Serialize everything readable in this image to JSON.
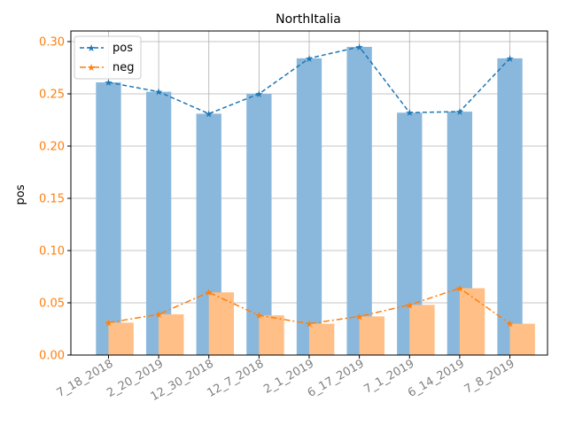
{
  "chart_data": {
    "type": "bar",
    "title": "NorthItalia",
    "xlabel": "",
    "ylabel": "pos",
    "ylim": [
      0,
      0.3
    ],
    "yticks": [
      "0.00",
      "0.05",
      "0.10",
      "0.15",
      "0.20",
      "0.25",
      "0.30"
    ],
    "categories": [
      "7_18_2018",
      "2_20_2019",
      "12_30_2018",
      "12_7_2018",
      "2_1_2019",
      "6_17_2019",
      "7_1_2019",
      "6_14_2019",
      "7_8_2019"
    ],
    "grid": true,
    "legend_position": "upper-left",
    "series": [
      {
        "name": "pos",
        "color": "#1f77b4",
        "bar_color": "#8ab8dc",
        "line_style": "dashed",
        "marker": "star",
        "values": [
          0.261,
          0.252,
          0.231,
          0.25,
          0.284,
          0.295,
          0.232,
          0.233,
          0.284
        ]
      },
      {
        "name": "neg",
        "color": "#ff7f0e",
        "bar_color": "#ffbf86",
        "line_style": "dashdot",
        "marker": "star",
        "values": [
          0.031,
          0.039,
          0.06,
          0.038,
          0.03,
          0.037,
          0.048,
          0.064,
          0.03
        ]
      }
    ]
  }
}
